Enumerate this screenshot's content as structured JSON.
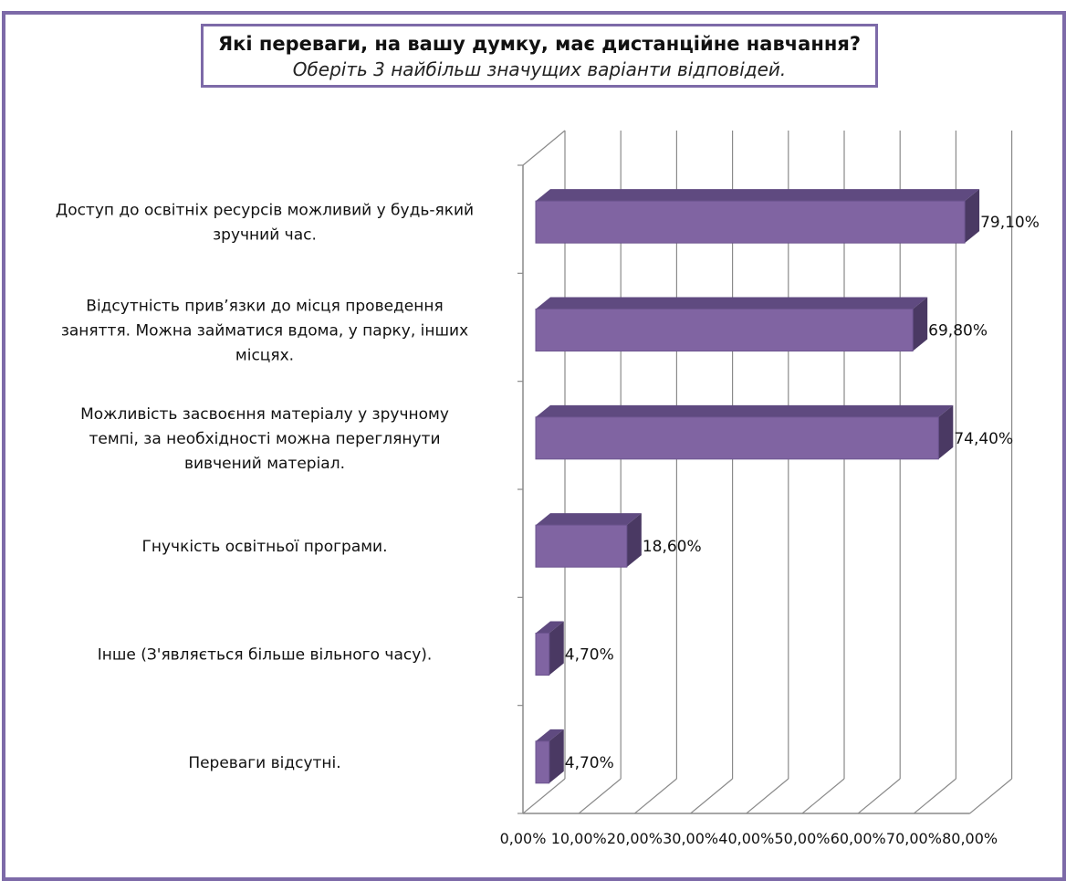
{
  "chart_data": {
    "type": "bar",
    "orientation": "horizontal",
    "three_d": true,
    "title": "Які переваги, на вашу думку, має дистанційне навчання?",
    "subtitle": "Оберіть 3 найбільш значущих варіанти відповідей.",
    "categories": [
      [
        "Доступ до освітніх ресурсів можливий у будь-який",
        "зручний час."
      ],
      [
        "Відсутність прив’язки до місця проведення",
        "заняття. Можна займатися вдома, у парку, інших",
        "місцях."
      ],
      [
        "Можливість засвоєння матеріалу у зручному",
        "темпі, за необхідності можна переглянути",
        "вивчений матеріал."
      ],
      [
        "Гнучкість освітньої програми."
      ],
      [
        "Інше (З'являється більше вільного часу)."
      ],
      [
        "Переваги відсутні."
      ]
    ],
    "values": [
      79.1,
      69.8,
      74.4,
      18.6,
      4.7,
      4.7
    ],
    "value_labels": [
      "79,10%",
      "69,80%",
      "74,40%",
      "18,60%",
      "4,70%",
      "4,70%"
    ],
    "x_ticks": [
      "0,00%",
      "10,00%",
      "20,00%",
      "30,00%",
      "40,00%",
      "50,00%",
      "60,00%",
      "70,00%",
      "80,00%"
    ],
    "xlim": [
      0,
      80
    ],
    "grid": true,
    "legend": "none",
    "colors": {
      "bar_front": "#8064a2",
      "bar_top": "#5f4a80",
      "bar_side": "#4a3963",
      "frame_border": "#7d6aa8",
      "grid": "#8a8a8a"
    }
  }
}
